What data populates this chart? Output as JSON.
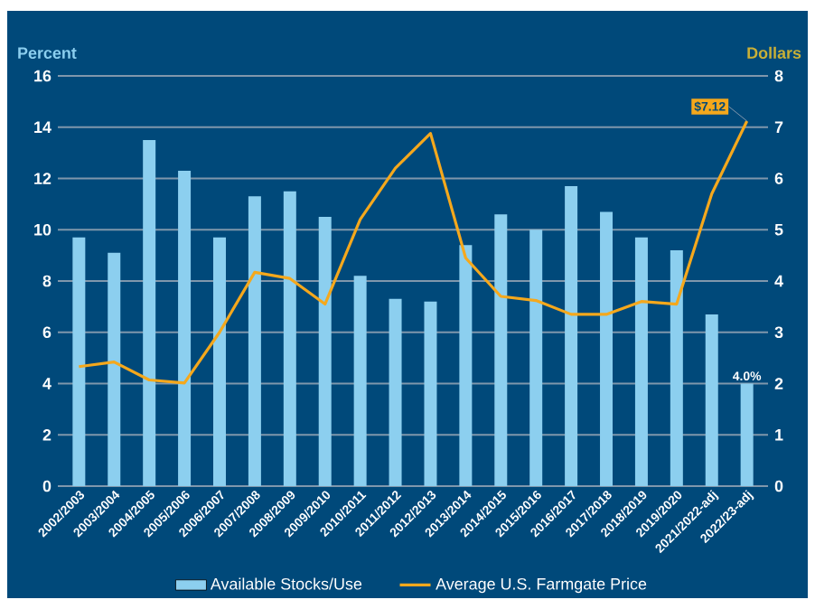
{
  "chart_data": {
    "type": "bar",
    "categories": [
      "2002/2003",
      "2003/2004",
      "2004/2005",
      "2005/2006",
      "2006/2007",
      "2007/2008",
      "2008/2009",
      "2009/2010",
      "2010/2011",
      "2011/2012",
      "2012/2013",
      "2013/2014",
      "2014/2015",
      "2015/2016",
      "2016/2017",
      "2017/2018",
      "2018/2019",
      "2019/2020",
      "2021/2022-adj",
      "2022/23-adj"
    ],
    "ylabel": "Percent",
    "y2label": "Dollars",
    "ylim": [
      0,
      16
    ],
    "yticks": [
      0,
      2,
      4,
      6,
      8,
      10,
      12,
      14,
      16
    ],
    "y2lim": [
      0,
      8
    ],
    "y2ticks": [
      0,
      1,
      2,
      3,
      4,
      5,
      6,
      7,
      8
    ],
    "grid": "y",
    "legend": "bottom",
    "series": [
      {
        "name": "Available Stocks/Use",
        "color": "#8ccfef",
        "values": [
          9.7,
          9.1,
          13.5,
          12.3,
          9.7,
          11.3,
          11.5,
          10.5,
          8.2,
          7.3,
          7.2,
          9.4,
          10.6,
          10.0,
          11.7,
          10.7,
          9.7,
          9.2,
          6.7,
          4.0
        ],
        "value_labels": [
          null,
          null,
          null,
          null,
          null,
          null,
          null,
          null,
          null,
          null,
          null,
          null,
          null,
          null,
          null,
          null,
          null,
          null,
          null,
          "4.0%"
        ]
      },
      {
        "name": "Average U.S. Farmgate Price",
        "type": "line",
        "axis": "y2",
        "color": "#f5a81c",
        "values": [
          2.33,
          2.42,
          2.07,
          2.01,
          3.0,
          4.17,
          4.05,
          3.55,
          5.2,
          6.2,
          6.88,
          4.45,
          3.7,
          3.62,
          3.35,
          3.35,
          3.6,
          3.55,
          5.7,
          7.12
        ],
        "value_labels": [
          null,
          null,
          null,
          null,
          null,
          null,
          null,
          null,
          null,
          null,
          null,
          null,
          null,
          null,
          null,
          null,
          null,
          null,
          null,
          "$7.12"
        ]
      }
    ]
  }
}
